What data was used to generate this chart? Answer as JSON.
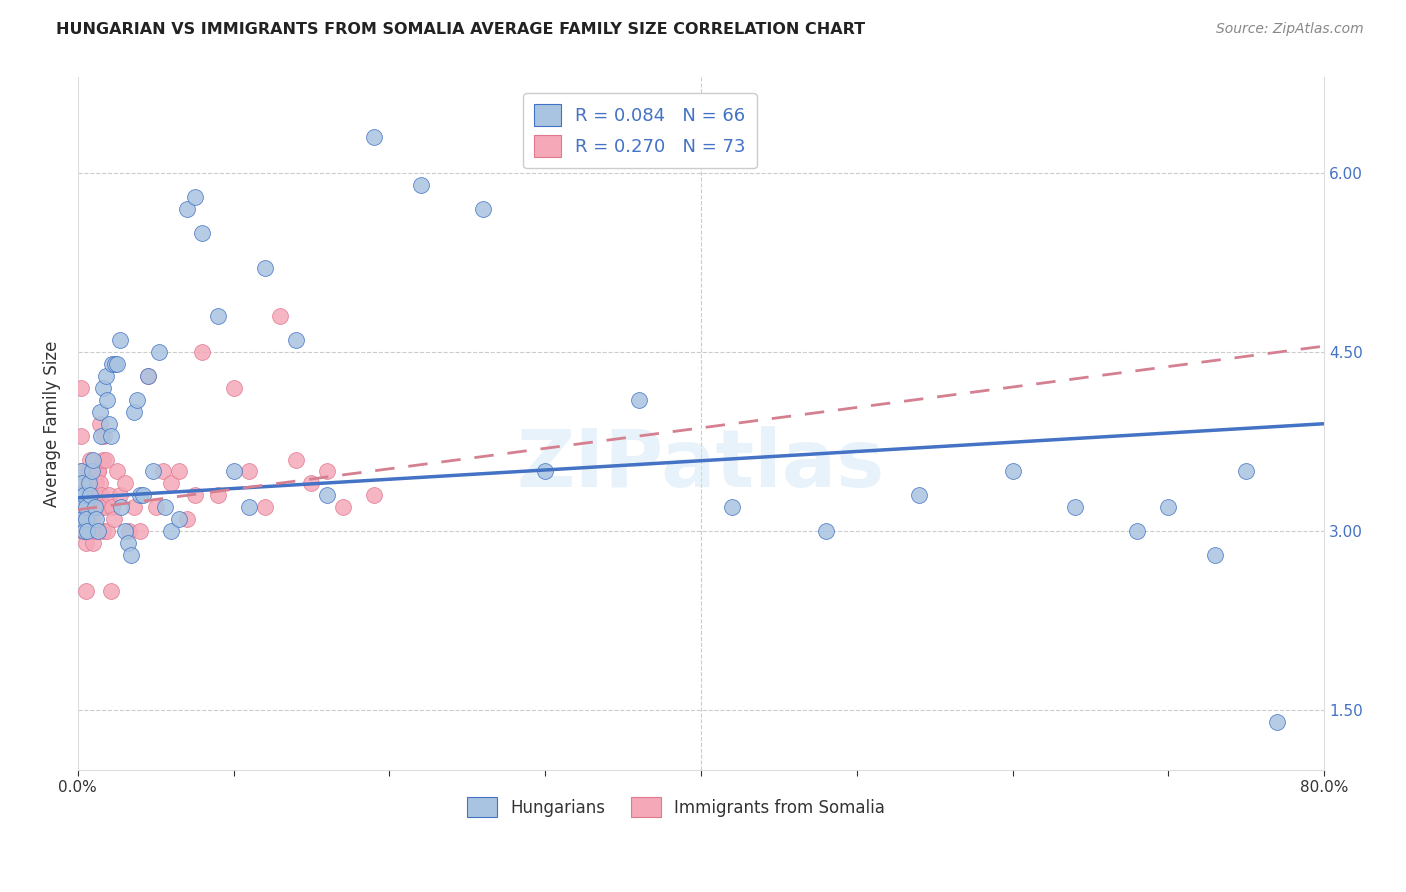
{
  "title": "HUNGARIAN VS IMMIGRANTS FROM SOMALIA AVERAGE FAMILY SIZE CORRELATION CHART",
  "source": "Source: ZipAtlas.com",
  "ylabel": "Average Family Size",
  "right_yticks": [
    1.5,
    3.0,
    4.5,
    6.0
  ],
  "legend_blue_r": "R = 0.084",
  "legend_blue_n": "N = 66",
  "legend_pink_r": "R = 0.270",
  "legend_pink_n": "N = 73",
  "legend_label_blue": "Hungarians",
  "legend_label_pink": "Immigrants from Somalia",
  "blue_color": "#a8c4e0",
  "pink_color": "#f4a8b8",
  "trend_blue_color": "#4472c4",
  "trend_pink_color": "#d48090",
  "watermark": "ZIPatlas",
  "xlim": [
    0.0,
    0.8
  ],
  "ylim": [
    1.0,
    6.8
  ],
  "blue_scatter_x": [
    0.001,
    0.002,
    0.002,
    0.003,
    0.003,
    0.004,
    0.004,
    0.005,
    0.005,
    0.006,
    0.007,
    0.008,
    0.009,
    0.01,
    0.011,
    0.012,
    0.013,
    0.014,
    0.015,
    0.016,
    0.018,
    0.019,
    0.02,
    0.021,
    0.022,
    0.024,
    0.025,
    0.027,
    0.028,
    0.03,
    0.032,
    0.034,
    0.036,
    0.038,
    0.04,
    0.042,
    0.045,
    0.048,
    0.052,
    0.056,
    0.06,
    0.065,
    0.07,
    0.075,
    0.08,
    0.09,
    0.1,
    0.11,
    0.12,
    0.14,
    0.16,
    0.19,
    0.22,
    0.26,
    0.3,
    0.36,
    0.42,
    0.48,
    0.54,
    0.6,
    0.64,
    0.68,
    0.7,
    0.73,
    0.75,
    0.77
  ],
  "blue_scatter_y": [
    3.3,
    3.5,
    3.2,
    3.1,
    3.4,
    3.0,
    3.3,
    3.2,
    3.1,
    3.0,
    3.4,
    3.3,
    3.5,
    3.6,
    3.2,
    3.1,
    3.0,
    4.0,
    3.8,
    4.2,
    4.3,
    4.1,
    3.9,
    3.8,
    4.4,
    4.4,
    4.4,
    4.6,
    3.2,
    3.0,
    2.9,
    2.8,
    4.0,
    4.1,
    3.3,
    3.3,
    4.3,
    3.5,
    4.5,
    3.2,
    3.0,
    3.1,
    5.7,
    5.8,
    5.5,
    4.8,
    3.5,
    3.2,
    5.2,
    4.6,
    3.3,
    6.3,
    5.9,
    5.7,
    3.5,
    4.1,
    3.2,
    3.0,
    3.3,
    3.5,
    3.2,
    3.0,
    3.2,
    2.8,
    3.5,
    1.4
  ],
  "pink_scatter_x": [
    0.001,
    0.001,
    0.001,
    0.002,
    0.002,
    0.002,
    0.003,
    0.003,
    0.003,
    0.004,
    0.004,
    0.004,
    0.005,
    0.005,
    0.005,
    0.006,
    0.006,
    0.006,
    0.007,
    0.007,
    0.007,
    0.008,
    0.008,
    0.008,
    0.009,
    0.009,
    0.01,
    0.01,
    0.011,
    0.011,
    0.012,
    0.012,
    0.013,
    0.013,
    0.014,
    0.014,
    0.015,
    0.015,
    0.016,
    0.016,
    0.017,
    0.017,
    0.018,
    0.019,
    0.02,
    0.021,
    0.022,
    0.023,
    0.025,
    0.027,
    0.03,
    0.033,
    0.036,
    0.04,
    0.045,
    0.05,
    0.055,
    0.06,
    0.065,
    0.07,
    0.075,
    0.08,
    0.09,
    0.1,
    0.11,
    0.12,
    0.13,
    0.14,
    0.15,
    0.16,
    0.17,
    0.19,
    0.005
  ],
  "pink_scatter_y": [
    3.3,
    3.4,
    3.2,
    3.8,
    4.2,
    3.5,
    3.3,
    3.1,
    3.0,
    3.2,
    3.0,
    3.1,
    2.9,
    3.2,
    3.0,
    3.1,
    3.3,
    3.0,
    3.2,
    3.1,
    3.5,
    3.2,
    3.4,
    3.6,
    3.3,
    3.0,
    2.9,
    3.1,
    3.0,
    3.2,
    3.4,
    3.5,
    3.5,
    3.5,
    3.4,
    3.9,
    3.2,
    3.3,
    3.6,
    3.0,
    3.2,
    3.8,
    3.6,
    3.0,
    3.3,
    2.5,
    3.2,
    3.1,
    3.5,
    3.3,
    3.4,
    3.0,
    3.2,
    3.0,
    4.3,
    3.2,
    3.5,
    3.4,
    3.5,
    3.1,
    3.3,
    4.5,
    3.3,
    4.2,
    3.5,
    3.2,
    4.8,
    3.6,
    3.4,
    3.5,
    3.2,
    3.3,
    2.5
  ],
  "trend_blue_x0": 0.0,
  "trend_blue_x1": 0.8,
  "trend_blue_y0": 3.28,
  "trend_blue_y1": 3.9,
  "trend_pink_x0": 0.0,
  "trend_pink_x1": 0.8,
  "trend_pink_y0": 3.18,
  "trend_pink_y1": 4.55
}
